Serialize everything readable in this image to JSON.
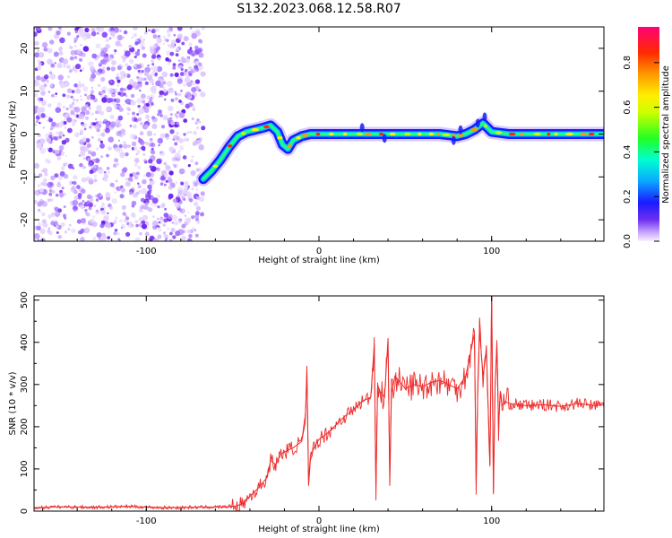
{
  "title": "S132.2023.068.12.58.R07",
  "chart_data": [
    {
      "type": "heatmap",
      "xlabel": "Height of straight line (km)",
      "ylabel": "Frequency (Hz)",
      "xlim": [
        -165,
        165
      ],
      "ylim": [
        -25,
        25
      ],
      "xticks": [
        "-100",
        "0",
        "100"
      ],
      "xtick_values": [
        -100,
        0,
        100
      ],
      "yticks": [
        "-20",
        "-10",
        "0",
        "10",
        "20"
      ],
      "ytick_values": [
        -20,
        -10,
        0,
        10,
        20
      ],
      "colorbar": {
        "label": "Normalized spectral amplitude",
        "ticks": [
          "0.0",
          "0.2",
          "0.4",
          "0.6",
          "0.8"
        ],
        "tick_values": [
          0.0,
          0.2,
          0.4,
          0.6,
          0.8
        ],
        "range": [
          0,
          0.96
        ]
      },
      "noise_region_x": [
        -165,
        -67
      ],
      "signal_track": {
        "x": [
          -67,
          -62,
          -57,
          -52,
          -47,
          -42,
          -37,
          -32,
          -28,
          -24,
          -21,
          -18,
          -15,
          -10,
          -5,
          0,
          10,
          20,
          30,
          40,
          50,
          60,
          70,
          80,
          85,
          90,
          95,
          100,
          110,
          120,
          130,
          140,
          150,
          160,
          165
        ],
        "freq": [
          -10.5,
          -8.5,
          -6,
          -3,
          -0.5,
          0.5,
          1,
          1.5,
          2,
          0.5,
          -2.5,
          -3.5,
          -1.5,
          -0.5,
          0,
          0,
          0,
          0,
          0,
          0,
          0,
          0,
          0,
          -0.5,
          0,
          1,
          2.5,
          0.5,
          0,
          0,
          0,
          0,
          0,
          0,
          0
        ]
      }
    },
    {
      "type": "line",
      "xlabel": "Height of straight line (km)",
      "ylabel": "SNR (10 * v/v)",
      "xlim": [
        -165,
        165
      ],
      "ylim": [
        0,
        510
      ],
      "xticks": [
        "-100",
        "0",
        "100"
      ],
      "xtick_values": [
        -100,
        0,
        100
      ],
      "yticks": [
        "0",
        "100",
        "200",
        "300",
        "400",
        "500"
      ],
      "ytick_values": [
        0,
        100,
        200,
        300,
        400,
        500
      ],
      "color": "#ee2a2a",
      "series": [
        {
          "x": [
            -165,
            -150,
            -130,
            -110,
            -90,
            -70,
            -55,
            -48,
            -44,
            -40,
            -35,
            -30,
            -28,
            -25,
            -22,
            -20,
            -15,
            -10,
            -8,
            -7,
            -6,
            -5,
            -3,
            0,
            5,
            10,
            15,
            20,
            25,
            30,
            32,
            33,
            34,
            35,
            38,
            40,
            41,
            42,
            43,
            44,
            46,
            50,
            55,
            60,
            65,
            70,
            75,
            80,
            85,
            88,
            90,
            91,
            92,
            93,
            95,
            97,
            99,
            100,
            101,
            102,
            103,
            104,
            105,
            106,
            108,
            110,
            120,
            130,
            140,
            150,
            160,
            165
          ],
          "y": [
            8,
            10,
            9,
            11,
            8,
            9,
            10,
            12,
            18,
            35,
            55,
            80,
            120,
            110,
            135,
            140,
            150,
            165,
            210,
            330,
            60,
            120,
            150,
            170,
            185,
            205,
            225,
            240,
            260,
            270,
            395,
            60,
            300,
            285,
            270,
            410,
            60,
            280,
            300,
            320,
            310,
            290,
            300,
            295,
            305,
            310,
            300,
            290,
            320,
            380,
            420,
            70,
            300,
            430,
            320,
            380,
            110,
            520,
            40,
            300,
            390,
            200,
            280,
            250,
            260,
            255,
            250,
            252,
            248,
            255,
            250,
            252
          ]
        }
      ]
    }
  ]
}
